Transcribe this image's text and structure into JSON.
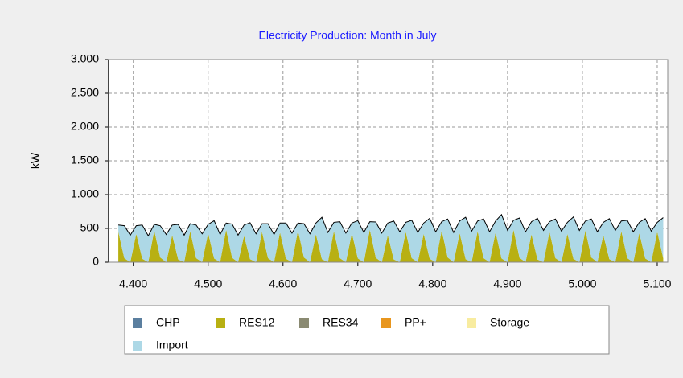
{
  "chart_data": {
    "type": "stacked_area",
    "title": "Electricity Production: Month in July",
    "y_label": "kW",
    "x": [
      4380,
      4388,
      4396,
      4404,
      4412,
      4420,
      4428,
      4436,
      4444,
      4452,
      4460,
      4468,
      4476,
      4484,
      4492,
      4500,
      4508,
      4516,
      4524,
      4532,
      4540,
      4548,
      4556,
      4564,
      4572,
      4580,
      4588,
      4596,
      4604,
      4612,
      4620,
      4628,
      4636,
      4644,
      4652,
      4660,
      4668,
      4676,
      4684,
      4692,
      4700,
      4708,
      4716,
      4724,
      4732,
      4740,
      4748,
      4756,
      4764,
      4772,
      4780,
      4788,
      4796,
      4804,
      4812,
      4820,
      4828,
      4836,
      4844,
      4852,
      4860,
      4868,
      4876,
      4884,
      4892,
      4900,
      4908,
      4916,
      4924,
      4932,
      4940,
      4948,
      4956,
      4964,
      4972,
      4980,
      4988,
      4996,
      5004,
      5012,
      5020,
      5028,
      5036,
      5044,
      5052,
      5060,
      5068,
      5076,
      5084,
      5092,
      5100,
      5108
    ],
    "series": [
      {
        "name": "CHP",
        "color": "#5b7f9f",
        "values": [
          0,
          0,
          0,
          0,
          0,
          0,
          0,
          0,
          0,
          0,
          0,
          0,
          0,
          0,
          0,
          0,
          0,
          0,
          0,
          0,
          0,
          0,
          0,
          0,
          0,
          0,
          0,
          0,
          0,
          0,
          0,
          0,
          0,
          0,
          0,
          0,
          0,
          0,
          0,
          0,
          0,
          0,
          0,
          0,
          0,
          0,
          0,
          0,
          0,
          0,
          0,
          0,
          0,
          0,
          0,
          0,
          0,
          0,
          0,
          0,
          0,
          0,
          0,
          0,
          0,
          0,
          0,
          0,
          0,
          0,
          0,
          0,
          0,
          0,
          0,
          0,
          0,
          0,
          0,
          0,
          0,
          0,
          0,
          0,
          0,
          0,
          0,
          0,
          0,
          0,
          0,
          0
        ]
      },
      {
        "name": "RES12",
        "color": "#b8b012",
        "values": [
          450,
          60,
          0,
          420,
          50,
          0,
          470,
          70,
          0,
          400,
          40,
          0,
          460,
          60,
          0,
          430,
          55,
          0,
          480,
          65,
          0,
          390,
          45,
          0,
          450,
          60,
          0,
          440,
          50,
          0,
          470,
          70,
          0,
          410,
          45,
          0,
          460,
          60,
          0,
          430,
          55,
          0,
          480,
          65,
          0,
          400,
          40,
          0,
          450,
          60,
          0,
          420,
          50,
          0,
          470,
          70,
          0,
          430,
          45,
          0,
          460,
          60,
          0,
          440,
          55,
          0,
          480,
          65,
          0,
          410,
          40,
          0,
          450,
          60,
          0,
          420,
          50,
          0,
          470,
          70,
          0,
          400,
          45,
          0,
          460,
          60,
          0,
          430,
          55,
          0,
          450,
          60
        ]
      },
      {
        "name": "RES34",
        "color": "#8a8a72",
        "values": [
          0,
          0,
          0,
          0,
          0,
          0,
          0,
          0,
          0,
          0,
          0,
          0,
          0,
          0,
          0,
          0,
          0,
          0,
          0,
          0,
          0,
          0,
          0,
          0,
          0,
          0,
          0,
          0,
          0,
          0,
          0,
          0,
          0,
          0,
          0,
          0,
          0,
          0,
          0,
          0,
          0,
          0,
          0,
          0,
          0,
          0,
          0,
          0,
          0,
          0,
          0,
          0,
          0,
          0,
          0,
          0,
          0,
          0,
          0,
          0,
          0,
          0,
          0,
          0,
          0,
          0,
          0,
          0,
          0,
          0,
          0,
          0,
          0,
          0,
          0,
          0,
          0,
          0,
          0,
          0,
          0,
          0,
          0,
          0,
          0,
          0,
          0,
          0,
          0,
          0,
          0,
          0
        ]
      },
      {
        "name": "PP+",
        "color": "#e8961e",
        "values": [
          0,
          0,
          0,
          0,
          0,
          0,
          0,
          0,
          0,
          0,
          0,
          0,
          0,
          0,
          0,
          0,
          0,
          0,
          0,
          0,
          0,
          0,
          0,
          0,
          0,
          0,
          0,
          0,
          0,
          0,
          0,
          0,
          0,
          0,
          0,
          0,
          0,
          0,
          0,
          0,
          0,
          0,
          0,
          0,
          0,
          0,
          0,
          0,
          0,
          0,
          0,
          0,
          0,
          0,
          0,
          0,
          0,
          0,
          0,
          0,
          0,
          0,
          0,
          0,
          0,
          0,
          0,
          0,
          0,
          0,
          0,
          0,
          0,
          0,
          0,
          0,
          0,
          0,
          0,
          0,
          0,
          0,
          0,
          0,
          0,
          0,
          0,
          0,
          0,
          0,
          0,
          0
        ]
      },
      {
        "name": "Storage",
        "color": "#f8eca0",
        "values": [
          0,
          0,
          0,
          0,
          0,
          0,
          0,
          0,
          0,
          0,
          0,
          0,
          0,
          0,
          0,
          0,
          0,
          0,
          0,
          0,
          0,
          0,
          0,
          0,
          0,
          0,
          0,
          0,
          0,
          0,
          0,
          0,
          0,
          0,
          0,
          0,
          0,
          0,
          0,
          0,
          0,
          0,
          0,
          0,
          0,
          0,
          0,
          0,
          0,
          0,
          0,
          0,
          0,
          0,
          0,
          0,
          0,
          0,
          0,
          0,
          0,
          0,
          0,
          0,
          0,
          0,
          0,
          0,
          0,
          0,
          0,
          0,
          0,
          0,
          0,
          0,
          0,
          0,
          0,
          0,
          0,
          0,
          0,
          0,
          0,
          0,
          0,
          0,
          0,
          0,
          0,
          0
        ]
      },
      {
        "name": "Import",
        "color": "#add8e6",
        "values": [
          100,
          480,
          400,
          120,
          500,
          390,
          90,
          470,
          410,
          150,
          520,
          400,
          110,
          490,
          420,
          130,
          560,
          410,
          100,
          500,
          400,
          160,
          540,
          420,
          120,
          510,
          410,
          140,
          530,
          430,
          110,
          500,
          420,
          170,
          620,
          440,
          130,
          540,
          430,
          150,
          560,
          440,
          120,
          530,
          430,
          180,
          570,
          450,
          140,
          560,
          440,
          160,
          600,
          450,
          130,
          570,
          440,
          180,
          620,
          460,
          150,
          580,
          450,
          170,
          650,
          470,
          140,
          590,
          450,
          190,
          610,
          470,
          150,
          580,
          460,
          170,
          620,
          470,
          140,
          570,
          450,
          190,
          600,
          470,
          150,
          560,
          450,
          160,
          590,
          460,
          140,
          600
        ]
      }
    ],
    "xlim": [
      4367,
      5114
    ],
    "ylim": [
      0,
      3000
    ],
    "xticks": [
      {
        "value": 4400,
        "label": "4.400"
      },
      {
        "value": 4500,
        "label": "4.500"
      },
      {
        "value": 4600,
        "label": "4.600"
      },
      {
        "value": 4700,
        "label": "4.700"
      },
      {
        "value": 4800,
        "label": "4.800"
      },
      {
        "value": 4900,
        "label": "4.900"
      },
      {
        "value": 5000,
        "label": "5.000"
      },
      {
        "value": 5100,
        "label": "5.100"
      }
    ],
    "yticks": [
      0,
      500,
      {
        "value": 1000,
        "label": "1.000"
      },
      {
        "value": 1500,
        "label": "1.500"
      },
      {
        "value": 2000,
        "label": "2.000"
      },
      {
        "value": 2500,
        "label": "2.500"
      },
      {
        "value": 3000,
        "label": "3.000"
      }
    ],
    "grid": true,
    "legend": "bottom"
  }
}
